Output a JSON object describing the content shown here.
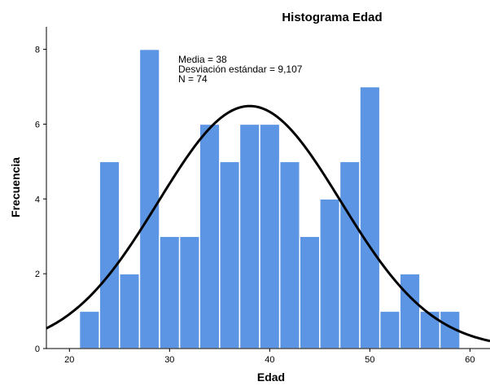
{
  "chart_data": {
    "type": "bar",
    "title": "Histograma Edad",
    "xlabel": "Edad",
    "ylabel": "Frecuencia",
    "xlim": [
      17.7,
      62
    ],
    "ylim": [
      0,
      8.6
    ],
    "x_ticks": [
      20,
      30,
      40,
      50,
      60
    ],
    "y_ticks": [
      0,
      2,
      4,
      6,
      8
    ],
    "bin_width": 2,
    "bins": [
      {
        "start": 21,
        "end": 23,
        "count": 1
      },
      {
        "start": 23,
        "end": 25,
        "count": 5
      },
      {
        "start": 25,
        "end": 27,
        "count": 2
      },
      {
        "start": 27,
        "end": 29,
        "count": 8
      },
      {
        "start": 29,
        "end": 31,
        "count": 3
      },
      {
        "start": 31,
        "end": 33,
        "count": 3
      },
      {
        "start": 33,
        "end": 35,
        "count": 6
      },
      {
        "start": 35,
        "end": 37,
        "count": 5
      },
      {
        "start": 37,
        "end": 39,
        "count": 6
      },
      {
        "start": 39,
        "end": 41,
        "count": 6
      },
      {
        "start": 41,
        "end": 43,
        "count": 5
      },
      {
        "start": 43,
        "end": 45,
        "count": 3
      },
      {
        "start": 45,
        "end": 47,
        "count": 4
      },
      {
        "start": 47,
        "end": 49,
        "count": 5
      },
      {
        "start": 49,
        "end": 51,
        "count": 7
      },
      {
        "start": 51,
        "end": 53,
        "count": 1
      },
      {
        "start": 53,
        "end": 55,
        "count": 2
      },
      {
        "start": 55,
        "end": 57,
        "count": 1
      },
      {
        "start": 57,
        "end": 59,
        "count": 1
      }
    ],
    "normal_curve": {
      "mean": 38,
      "sd": 9.107,
      "n": 74
    },
    "stats_lines": [
      "Media = 38",
      "Desviación estándar = 9,107",
      "N = 74"
    ],
    "bar_color": "#5b95e3",
    "curve_color": "#000000",
    "grid": false
  }
}
